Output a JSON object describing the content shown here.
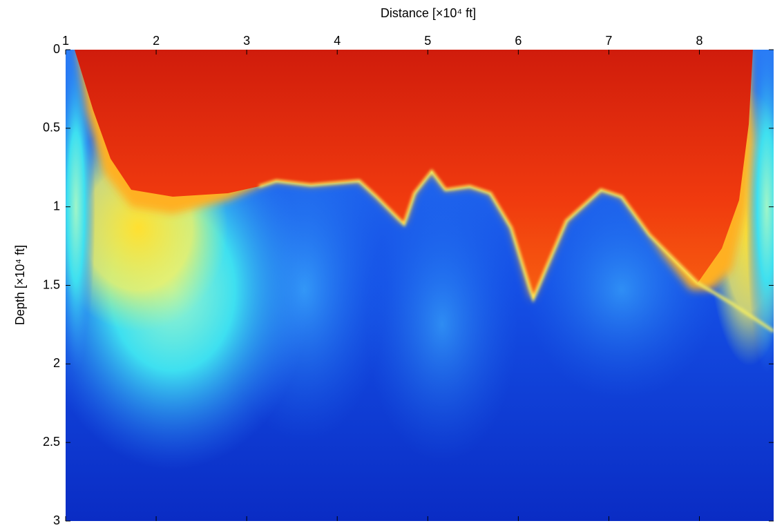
{
  "chart_data": {
    "type": "image",
    "xlabel": "Distance [×10⁴ ft]",
    "ylabel": "Depth [×10⁴ ft]",
    "x_axis_position": "top",
    "y_inverted": true,
    "xlim": [
      1,
      8.82
    ],
    "xticks": [
      1,
      2,
      3,
      4,
      5,
      6,
      7,
      8
    ],
    "ylim": [
      0,
      3
    ],
    "yticks": [
      0,
      0.5,
      1,
      1.5,
      2,
      2.5,
      3
    ]
  }
}
